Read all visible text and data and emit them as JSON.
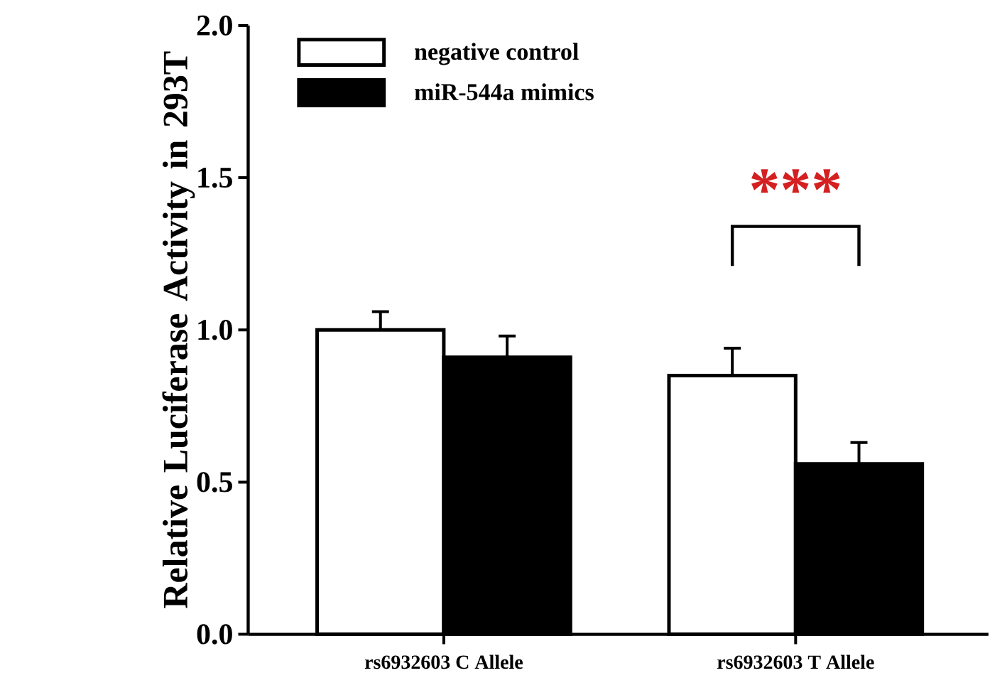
{
  "chart_data": {
    "type": "bar",
    "ylabel": "Relative Luciferase Activity in 293T",
    "categories": [
      "rs6932603 C Allele",
      "rs6932603 T Allele"
    ],
    "series": [
      {
        "name": "negative control",
        "color": "#ffffff",
        "values": [
          1.0,
          0.85
        ],
        "errors": [
          0.06,
          0.09
        ]
      },
      {
        "name": "miR-544a mimics",
        "color": "#000000",
        "values": [
          0.91,
          0.56
        ],
        "errors": [
          0.07,
          0.07
        ]
      }
    ],
    "ylim": [
      0,
      2.0
    ],
    "yticks": [
      {
        "value": 0,
        "label": "0.0"
      },
      {
        "value": 0.5,
        "label": "0.5"
      },
      {
        "value": 1.0,
        "label": "1.0"
      },
      {
        "value": 1.5,
        "label": "1.5"
      },
      {
        "value": 2.0,
        "label": "2.0"
      }
    ],
    "annotations": [
      "***"
    ],
    "legend": "top left",
    "grid": false
  }
}
